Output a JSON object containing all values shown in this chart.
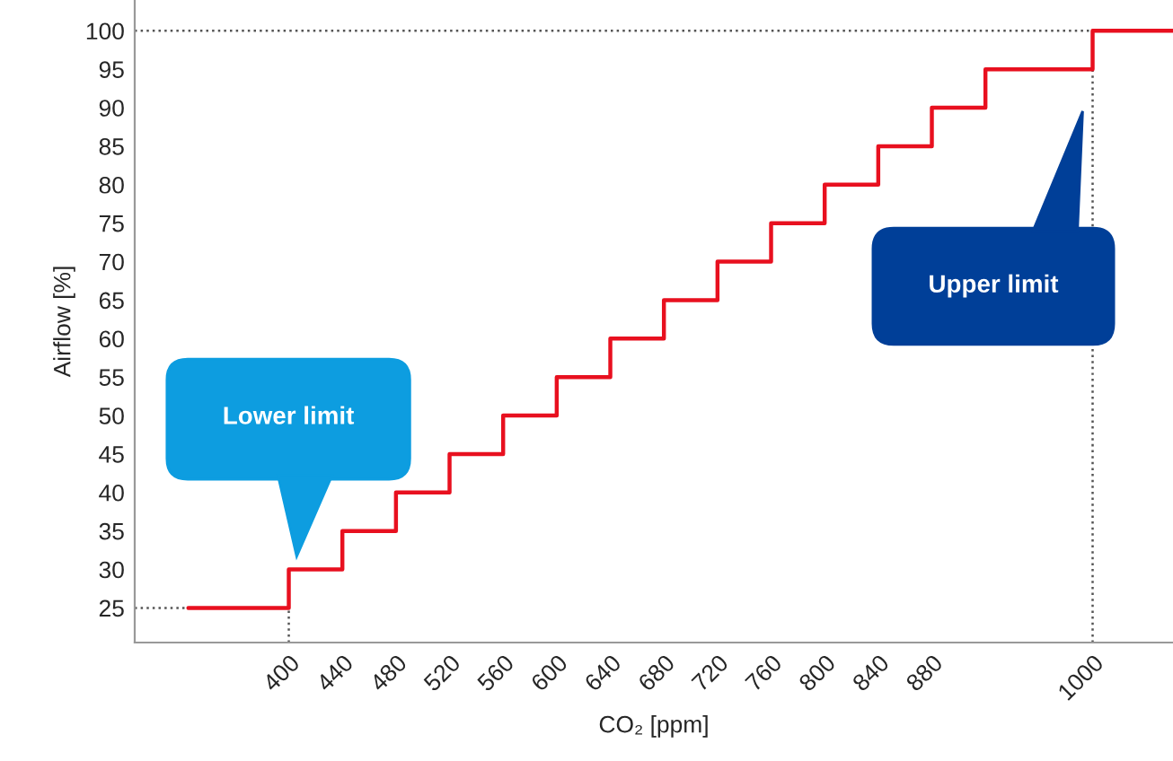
{
  "chart_data": {
    "type": "step",
    "xlabel": "CO₂ [ppm]",
    "ylabel": "Airflow [%]",
    "x": [
      325,
      400,
      440,
      480,
      520,
      560,
      600,
      640,
      680,
      720,
      760,
      800,
      840,
      880,
      920,
      1000,
      1060
    ],
    "series": [
      {
        "color": "#e8101f",
        "values": [
          25,
          30,
          35,
          40,
          45,
          50,
          55,
          60,
          65,
          70,
          75,
          80,
          85,
          90,
          95,
          100,
          100
        ]
      }
    ],
    "xlim": [
      285,
      1060
    ],
    "xticks": [
      400,
      440,
      480,
      520,
      560,
      600,
      640,
      680,
      720,
      760,
      800,
      840,
      880,
      1000
    ],
    "ylim": [
      20.5,
      104
    ],
    "yticks": [
      25,
      30,
      35,
      40,
      45,
      50,
      55,
      60,
      65,
      70,
      75,
      80,
      85,
      90,
      95,
      100
    ],
    "ref_lines": [
      {
        "axis": "y",
        "value": 25,
        "color": "#555555",
        "line_style": "dotted"
      },
      {
        "axis": "y",
        "value": 100,
        "color": "#555555",
        "line_style": "dotted"
      },
      {
        "axis": "x",
        "value": 400,
        "color": "#555555",
        "line_style": "dotted"
      },
      {
        "axis": "x",
        "value": 1000,
        "color": "#555555",
        "line_style": "dotted"
      }
    ],
    "annotations": [
      "Lower limit",
      "Upper limit"
    ],
    "grid": false
  }
}
